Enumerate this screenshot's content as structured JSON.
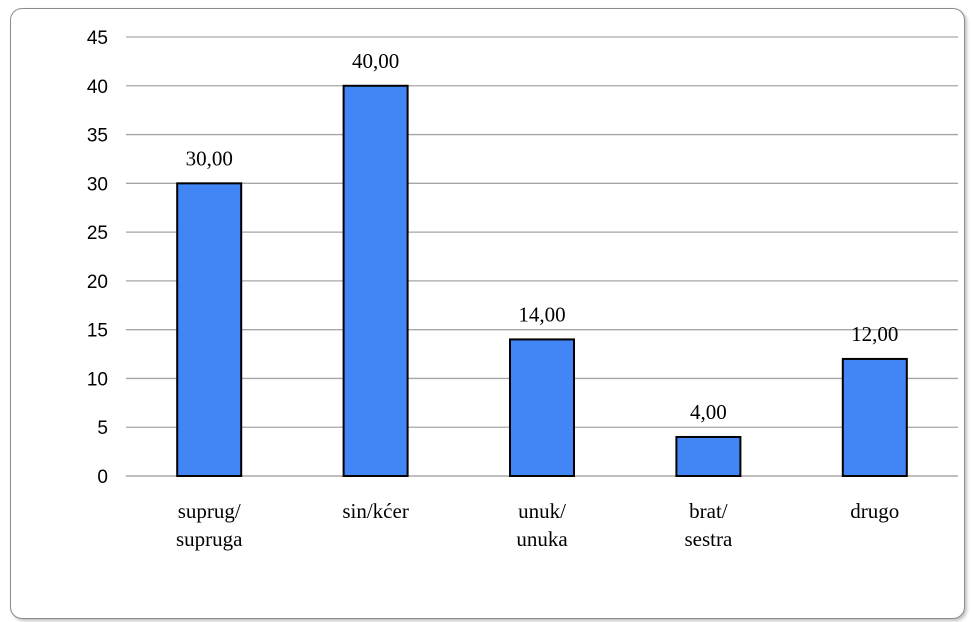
{
  "chart_data": {
    "type": "bar",
    "categories": [
      [
        "suprug/",
        "supruga"
      ],
      [
        "sin/kćer"
      ],
      [
        "unuk/",
        "unuka"
      ],
      [
        "brat/",
        "sestra"
      ],
      [
        "drugo"
      ]
    ],
    "values": [
      30,
      40,
      14,
      4,
      12
    ],
    "data_labels": [
      "30,00",
      "40,00",
      "14,00",
      "4,00",
      "12,00"
    ],
    "y_ticks": [
      "0",
      "5",
      "10",
      "15",
      "20",
      "25",
      "30",
      "35",
      "40",
      "45"
    ],
    "ylim": [
      0,
      45
    ],
    "title": "",
    "xlabel": "",
    "ylabel": "",
    "grid": true,
    "legend": "none",
    "colors": {
      "bar_fill": "#4285F4",
      "bar_stroke": "#000000",
      "grid": "#a6a6a6",
      "frame": "#8c8c8c"
    }
  }
}
